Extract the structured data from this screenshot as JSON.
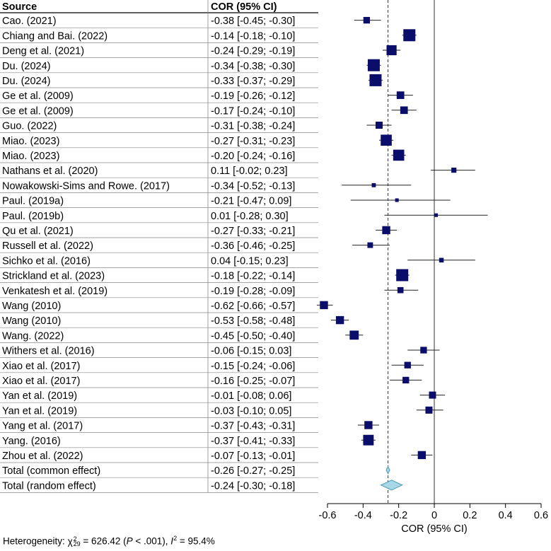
{
  "chart_data": {
    "type": "forest",
    "columns": {
      "source": "Source",
      "estimate": "COR (95% CI)"
    },
    "xlabel": "COR (95% CI)",
    "xlim": [
      -0.6,
      0.6
    ],
    "xticks": [
      "-0.6",
      "-0.4",
      "-0.2",
      "0",
      "0.2",
      "0.4",
      "0.6"
    ],
    "xtick_values": [
      -0.6,
      -0.4,
      -0.2,
      0,
      0.2,
      0.4,
      0.6
    ],
    "reference_line": 0,
    "dashed_line": -0.26,
    "studies": [
      {
        "source": "Cao. (2021)",
        "cor": -0.38,
        "lo": -0.45,
        "hi": -0.3,
        "label": "-0.38 [-0.45; -0.30]",
        "weight": 0.45
      },
      {
        "source": "Chiang and Bai. (2022)",
        "cor": -0.14,
        "lo": -0.18,
        "hi": -0.1,
        "label": "-0.14 [-0.18; -0.10]",
        "weight": 1.0
      },
      {
        "source": "Deng et al.  (2021)",
        "cor": -0.24,
        "lo": -0.29,
        "hi": -0.19,
        "label": "-0.24 [-0.29; -0.19]",
        "weight": 0.8
      },
      {
        "source": "Du. (2024)",
        "cor": -0.34,
        "lo": -0.38,
        "hi": -0.3,
        "label": "-0.34 [-0.38; -0.30]",
        "weight": 1.0
      },
      {
        "source": "Du. (2024)",
        "cor": -0.33,
        "lo": -0.37,
        "hi": -0.29,
        "label": "-0.33 [-0.37; -0.29]",
        "weight": 1.0
      },
      {
        "source": "Ge et al. (2009)",
        "cor": -0.19,
        "lo": -0.26,
        "hi": -0.12,
        "label": "-0.19 [-0.26; -0.12]",
        "weight": 0.55
      },
      {
        "source": "Ge et al. (2009)",
        "cor": -0.17,
        "lo": -0.24,
        "hi": -0.1,
        "label": "-0.17 [-0.24; -0.10]",
        "weight": 0.55
      },
      {
        "source": "Guo. (2022)",
        "cor": -0.31,
        "lo": -0.38,
        "hi": -0.24,
        "label": "-0.31 [-0.38; -0.24]",
        "weight": 0.5
      },
      {
        "source": "Miao. (2023)",
        "cor": -0.27,
        "lo": -0.31,
        "hi": -0.23,
        "label": "-0.27 [-0.31; -0.23]",
        "weight": 0.9
      },
      {
        "source": "Miao. (2023)",
        "cor": -0.2,
        "lo": -0.24,
        "hi": -0.16,
        "label": "-0.20 [-0.24; -0.16]",
        "weight": 0.9
      },
      {
        "source": "Nathans et al. (2020)",
        "cor": 0.11,
        "lo": -0.02,
        "hi": 0.23,
        "label": "0.11 [-0.02;  0.23]",
        "weight": 0.3
      },
      {
        "source": "Nowakowski-Sims and Rowe. (2017)",
        "cor": -0.34,
        "lo": -0.52,
        "hi": -0.13,
        "label": "-0.34 [-0.52; -0.13]",
        "weight": 0.2
      },
      {
        "source": "Paul. (2019a)",
        "cor": -0.21,
        "lo": -0.47,
        "hi": 0.09,
        "label": "-0.21 [-0.47;  0.09]",
        "weight": 0.15
      },
      {
        "source": "Paul. (2019b)",
        "cor": 0.01,
        "lo": -0.28,
        "hi": 0.3,
        "label": "0.01 [-0.28;  0.30]",
        "weight": 0.15
      },
      {
        "source": "Qu et al. (2021)",
        "cor": -0.27,
        "lo": -0.33,
        "hi": -0.21,
        "label": "-0.27 [-0.33; -0.21]",
        "weight": 0.6
      },
      {
        "source": "Russell et al. (2022)",
        "cor": -0.36,
        "lo": -0.46,
        "hi": -0.25,
        "label": "-0.36 [-0.46; -0.25]",
        "weight": 0.35
      },
      {
        "source": "Sichko et al. (2016)",
        "cor": 0.04,
        "lo": -0.15,
        "hi": 0.23,
        "label": "0.04 [-0.15;  0.23]",
        "weight": 0.25
      },
      {
        "source": "Strickland et al. (2023)",
        "cor": -0.18,
        "lo": -0.22,
        "hi": -0.14,
        "label": "-0.18 [-0.22; -0.14]",
        "weight": 1.0
      },
      {
        "source": "Venkatesh et al. (2019)",
        "cor": -0.19,
        "lo": -0.28,
        "hi": -0.09,
        "label": "-0.19 [-0.28; -0.09]",
        "weight": 0.4
      },
      {
        "source": "Wang (2010)",
        "cor": -0.62,
        "lo": -0.66,
        "hi": -0.57,
        "label": "-0.62 [-0.66; -0.57]",
        "weight": 0.6
      },
      {
        "source": "Wang (2010)",
        "cor": -0.53,
        "lo": -0.58,
        "hi": -0.48,
        "label": "-0.53 [-0.58; -0.48]",
        "weight": 0.6
      },
      {
        "source": "Wang. (2022)",
        "cor": -0.45,
        "lo": -0.5,
        "hi": -0.4,
        "label": "-0.45 [-0.50; -0.40]",
        "weight": 0.7
      },
      {
        "source": "Withers et al. (2016)",
        "cor": -0.06,
        "lo": -0.15,
        "hi": 0.03,
        "label": "-0.06 [-0.15;  0.03]",
        "weight": 0.45
      },
      {
        "source": "Xiao et al. (2017)",
        "cor": -0.15,
        "lo": -0.24,
        "hi": -0.06,
        "label": "-0.15 [-0.24; -0.06]",
        "weight": 0.45
      },
      {
        "source": "Xiao et al. (2017)",
        "cor": -0.16,
        "lo": -0.25,
        "hi": -0.07,
        "label": "-0.16 [-0.25; -0.07]",
        "weight": 0.45
      },
      {
        "source": "Yan et al. (2019)",
        "cor": -0.01,
        "lo": -0.08,
        "hi": 0.06,
        "label": "-0.01 [-0.08;  0.06]",
        "weight": 0.5
      },
      {
        "source": "Yan et al. (2019)",
        "cor": -0.03,
        "lo": -0.1,
        "hi": 0.05,
        "label": "-0.03 [-0.10;  0.05]",
        "weight": 0.5
      },
      {
        "source": "Yang et al.  (2017)",
        "cor": -0.37,
        "lo": -0.43,
        "hi": -0.31,
        "label": "-0.37 [-0.43; -0.31]",
        "weight": 0.6
      },
      {
        "source": "Yang. (2016)",
        "cor": -0.37,
        "lo": -0.41,
        "hi": -0.33,
        "label": "-0.37 [-0.41; -0.33]",
        "weight": 0.85
      },
      {
        "source": "Zhou et al. (2022)",
        "cor": -0.07,
        "lo": -0.13,
        "hi": -0.01,
        "label": "-0.07 [-0.13; -0.01]",
        "weight": 0.6
      }
    ],
    "totals": [
      {
        "source": "Total (common effect)",
        "cor": -0.26,
        "lo": -0.27,
        "hi": -0.25,
        "label": "-0.26 [-0.27; -0.25]"
      },
      {
        "source": "Total (random effect)",
        "cor": -0.24,
        "lo": -0.3,
        "hi": -0.18,
        "label": "-0.24 [-0.30; -0.18]"
      }
    ],
    "heterogeneity": {
      "prefix": "Heterogeneity: ",
      "chi_symbol": "χ",
      "df": "29",
      "chi_value": " = 626.42 (",
      "p_symbol": "P",
      "p_text": " < .001), ",
      "i_symbol": "I",
      "i_sup": "2",
      "i_value": " = 95.4%"
    },
    "colors": {
      "square": "#0b0d6b",
      "diamond": "#a8d8e8",
      "diamond_stroke": "#4a9ab5",
      "grid": "#888888"
    }
  }
}
